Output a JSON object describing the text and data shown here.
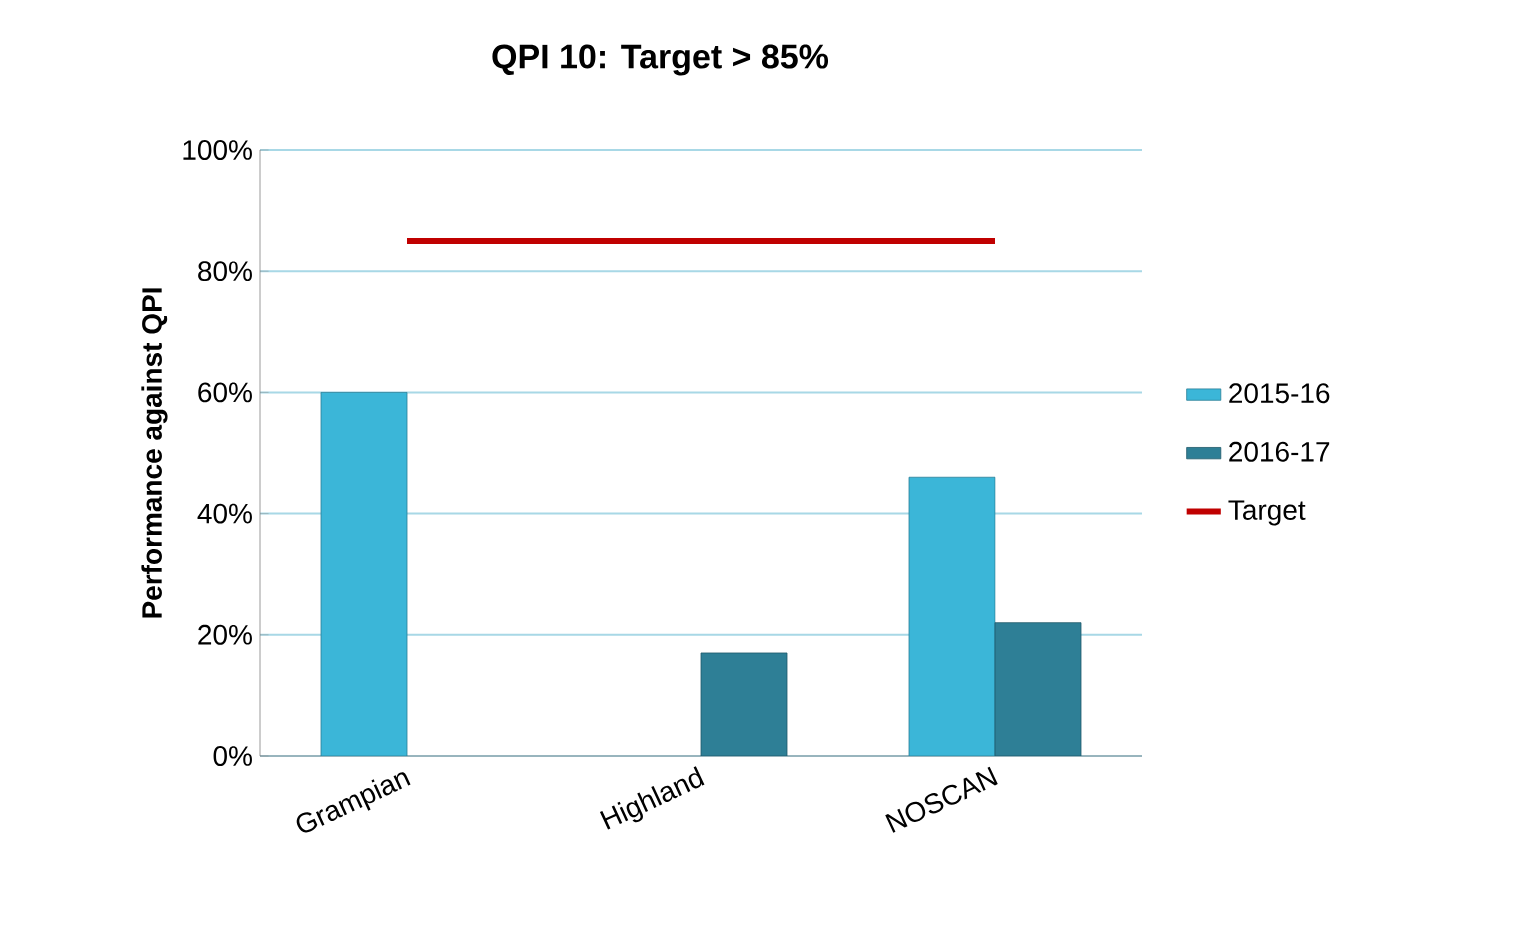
{
  "chart_data": {
    "type": "bar",
    "title": "QPI 10: Target > 85%",
    "ylabel": "Performance against QPI",
    "categories": [
      "Grampian",
      "Highland",
      "NOSCAN"
    ],
    "series": [
      {
        "name": "2015-16",
        "color": "#3bb6d8",
        "values": [
          60,
          null,
          46
        ]
      },
      {
        "name": "2016-17",
        "color": "#2e7f96",
        "values": [
          null,
          17,
          22
        ]
      },
      {
        "name": "Target",
        "type": "line",
        "color": "#c00000",
        "values": [
          85,
          85,
          85
        ]
      }
    ],
    "ylim": [
      0,
      100
    ],
    "yticks": [
      {
        "value": 0,
        "label": "0%"
      },
      {
        "value": 20,
        "label": "20%"
      },
      {
        "value": 40,
        "label": "40%"
      },
      {
        "value": 60,
        "label": "60%"
      },
      {
        "value": 80,
        "label": "80%"
      },
      {
        "value": 100,
        "label": "100%"
      }
    ],
    "grid": "y",
    "legend": "right"
  }
}
